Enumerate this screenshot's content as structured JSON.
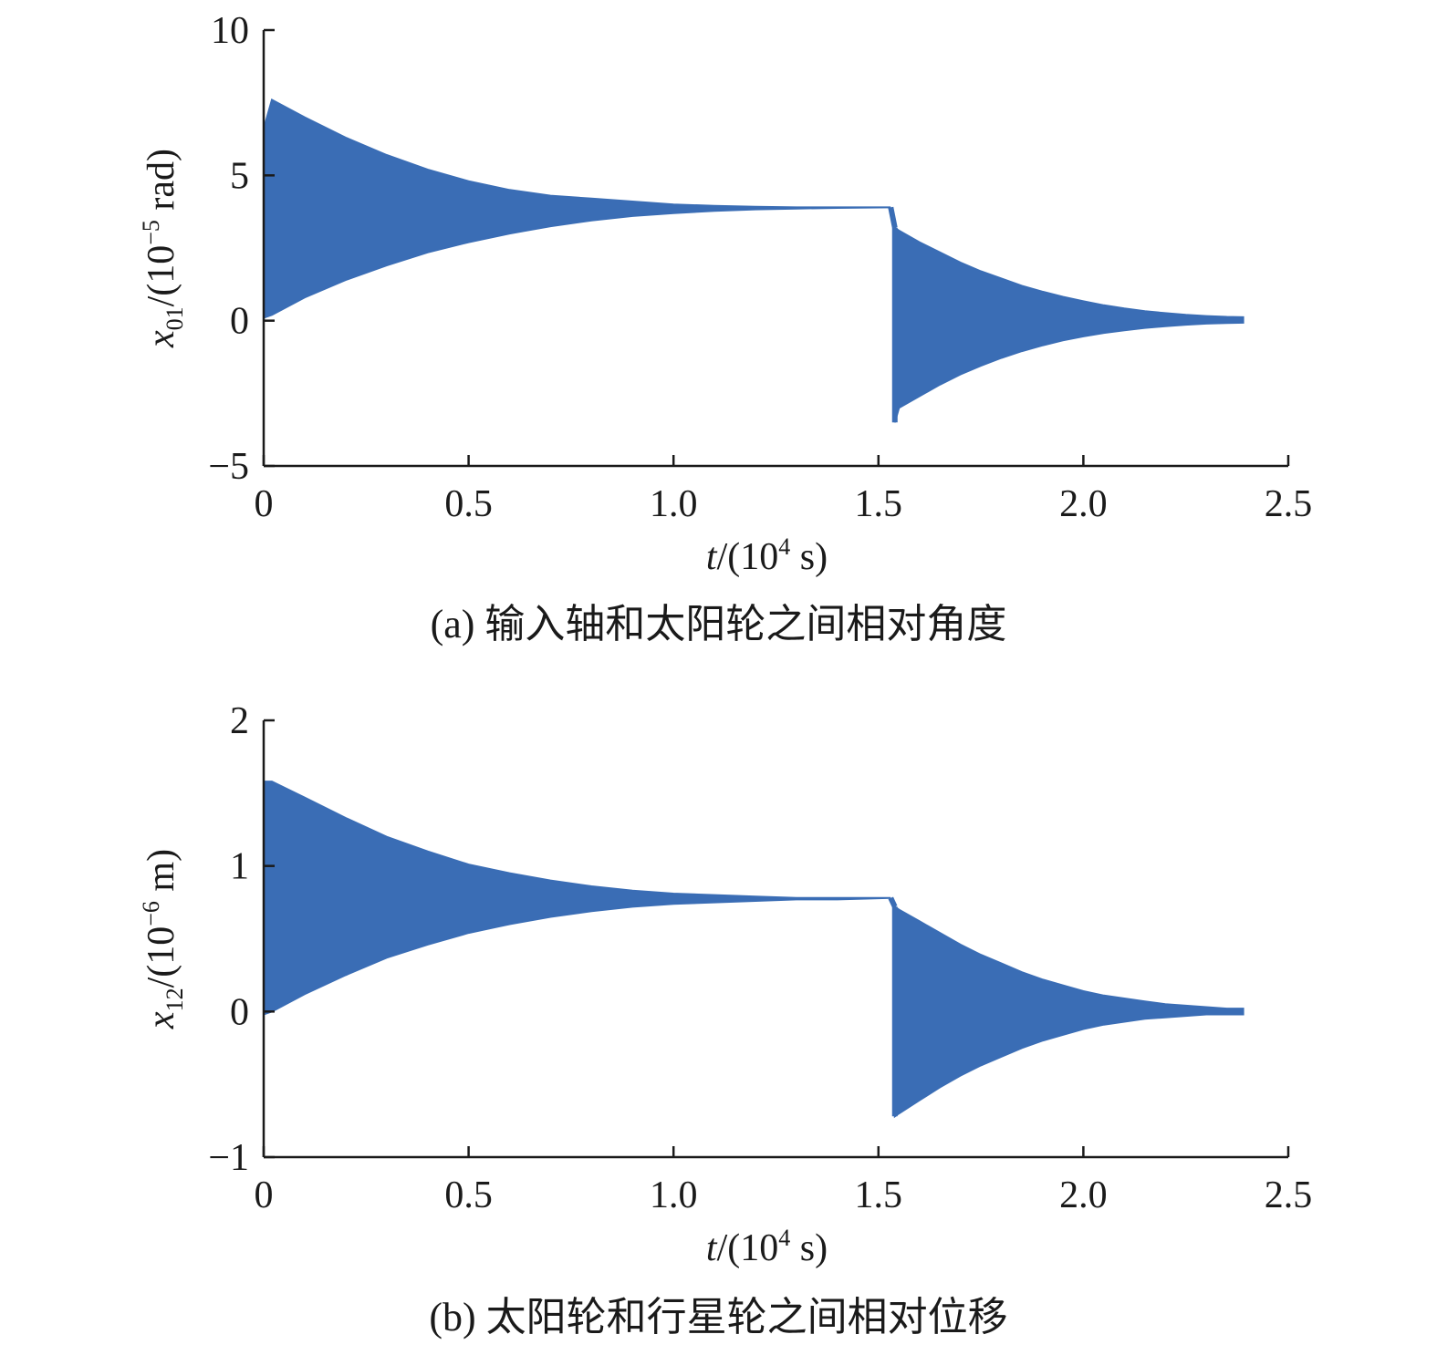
{
  "chart_data": [
    {
      "type": "area",
      "caption": "(a) 输入轴和太阳轮之间相对角度",
      "ylabel_var": "x",
      "ylabel_sub": "01",
      "ylabel_unit_prefix": "/(10",
      "ylabel_exp": "−5",
      "ylabel_unit_suffix": " rad)",
      "xlabel_var": "t",
      "xlabel_unit_prefix": "/(10",
      "xlabel_exp": "4",
      "xlabel_unit_suffix": " s)",
      "xlim": [
        0,
        2.5
      ],
      "ylim": [
        -5,
        10
      ],
      "xticks": [
        0,
        0.5,
        1.0,
        1.5,
        2.0,
        2.5
      ],
      "xtick_labels": [
        "0",
        "0.5",
        "1.0",
        "1.5",
        "2.0",
        "2.5"
      ],
      "yticks": [
        -5,
        0,
        5,
        10
      ],
      "ytick_labels": [
        "−5",
        "0",
        "5",
        "10"
      ],
      "color": "#3a6db5",
      "series": [
        {
          "x": [
            0.0,
            0.02,
            0.1,
            0.2,
            0.3,
            0.4,
            0.5,
            0.6,
            0.7,
            0.8,
            0.9,
            1.0,
            1.1,
            1.2,
            1.3,
            1.4,
            1.53
          ],
          "upper": [
            6.6,
            7.6,
            7.0,
            6.3,
            5.7,
            5.2,
            4.8,
            4.5,
            4.3,
            4.2,
            4.1,
            4.0,
            3.95,
            3.92,
            3.9,
            3.9,
            3.9
          ],
          "lower": [
            0.1,
            0.2,
            0.8,
            1.4,
            1.9,
            2.35,
            2.7,
            3.0,
            3.25,
            3.45,
            3.6,
            3.7,
            3.78,
            3.83,
            3.86,
            3.88,
            3.9
          ]
        },
        {
          "x": [
            1.54,
            1.55,
            1.6,
            1.65,
            1.7,
            1.75,
            1.8,
            1.85,
            1.9,
            1.95,
            2.0,
            2.05,
            2.1,
            2.15,
            2.2,
            2.25,
            2.3,
            2.35,
            2.39
          ],
          "upper": [
            3.2,
            3.1,
            2.7,
            2.35,
            2.0,
            1.7,
            1.45,
            1.2,
            1.0,
            0.82,
            0.67,
            0.53,
            0.42,
            0.33,
            0.26,
            0.2,
            0.16,
            0.13,
            0.12
          ],
          "lower": [
            -3.5,
            -3.0,
            -2.6,
            -2.2,
            -1.85,
            -1.55,
            -1.28,
            -1.05,
            -0.85,
            -0.68,
            -0.54,
            -0.42,
            -0.33,
            -0.25,
            -0.19,
            -0.14,
            -0.1,
            -0.08,
            -0.07
          ]
        }
      ]
    },
    {
      "type": "area",
      "caption": "(b) 太阳轮和行星轮之间相对位移",
      "ylabel_var": "x",
      "ylabel_sub": "12",
      "ylabel_unit_prefix": "/(10",
      "ylabel_exp": "−6",
      "ylabel_unit_suffix": " m)",
      "xlabel_var": "t",
      "xlabel_unit_prefix": "/(10",
      "xlabel_exp": "4",
      "xlabel_unit_suffix": " s)",
      "xlim": [
        0,
        2.5
      ],
      "ylim": [
        -1,
        2
      ],
      "xticks": [
        0,
        0.5,
        1.0,
        1.5,
        2.0,
        2.5
      ],
      "xtick_labels": [
        "0",
        "0.5",
        "1.0",
        "1.5",
        "2.0",
        "2.5"
      ],
      "yticks": [
        -1,
        0,
        1,
        2
      ],
      "ytick_labels": [
        "−1",
        "0",
        "1",
        "2"
      ],
      "color": "#3a6db5",
      "series": [
        {
          "x": [
            0.0,
            0.02,
            0.1,
            0.2,
            0.3,
            0.4,
            0.5,
            0.6,
            0.7,
            0.8,
            0.9,
            1.0,
            1.1,
            1.2,
            1.3,
            1.4,
            1.53
          ],
          "upper": [
            1.58,
            1.58,
            1.47,
            1.33,
            1.2,
            1.1,
            1.01,
            0.95,
            0.9,
            0.86,
            0.83,
            0.81,
            0.8,
            0.79,
            0.78,
            0.78,
            0.78
          ],
          "lower": [
            -0.02,
            0.0,
            0.12,
            0.25,
            0.37,
            0.46,
            0.54,
            0.6,
            0.65,
            0.69,
            0.72,
            0.74,
            0.75,
            0.76,
            0.77,
            0.77,
            0.78
          ]
        },
        {
          "x": [
            1.54,
            1.55,
            1.6,
            1.65,
            1.7,
            1.75,
            1.8,
            1.85,
            1.9,
            1.95,
            2.0,
            2.05,
            2.1,
            2.15,
            2.2,
            2.25,
            2.3,
            2.35,
            2.39
          ],
          "upper": [
            0.72,
            0.7,
            0.62,
            0.54,
            0.46,
            0.39,
            0.33,
            0.27,
            0.22,
            0.18,
            0.14,
            0.11,
            0.09,
            0.07,
            0.05,
            0.04,
            0.03,
            0.02,
            0.02
          ],
          "lower": [
            -0.72,
            -0.7,
            -0.61,
            -0.52,
            -0.44,
            -0.37,
            -0.31,
            -0.25,
            -0.2,
            -0.16,
            -0.12,
            -0.09,
            -0.07,
            -0.05,
            -0.04,
            -0.03,
            -0.02,
            -0.02,
            -0.02
          ]
        }
      ]
    }
  ]
}
